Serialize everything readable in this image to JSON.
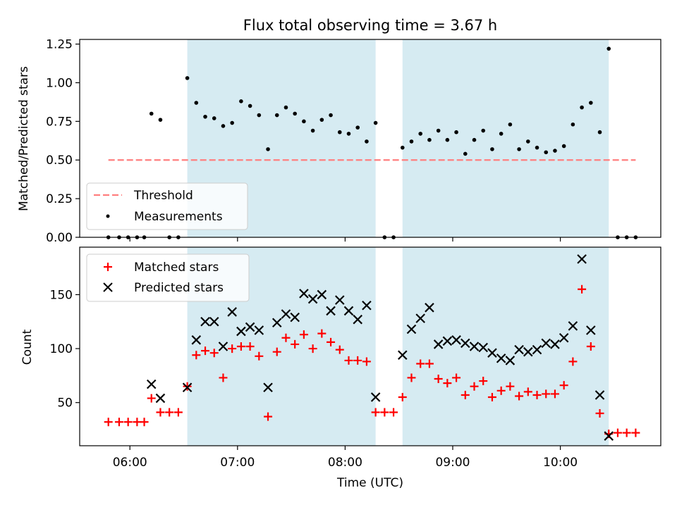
{
  "chart_data": [
    {
      "type": "scatter",
      "title": "Flux total observing time = 3.67 h",
      "xlabel": "",
      "ylabel": "Matched/Predicted stars",
      "ylim": [
        0,
        1.28
      ],
      "yticks": [
        "0.00",
        "0.25",
        "0.50",
        "0.75",
        "1.00",
        "1.25"
      ],
      "xlim": [
        "05:32",
        "10:56"
      ],
      "grid": false,
      "legend_position": "bottom-left",
      "shaded_intervals": [
        [
          "06:32",
          "08:17"
        ],
        [
          "08:32",
          "10:27"
        ]
      ],
      "shade_color": "#add8e6",
      "threshold": {
        "name": "Threshold",
        "value": 0.5,
        "x_range": [
          "05:48",
          "10:42"
        ],
        "color": "#ff7f7f"
      },
      "series": [
        {
          "name": "Measurements",
          "color": "#000000",
          "marker": "dot",
          "points": [
            [
              "05:48",
              0.0
            ],
            [
              "05:54",
              0.0
            ],
            [
              "05:59",
              0.0
            ],
            [
              "06:04",
              0.0
            ],
            [
              "06:08",
              0.0
            ],
            [
              "06:12",
              0.8
            ],
            [
              "06:17",
              0.76
            ],
            [
              "06:22",
              0.0
            ],
            [
              "06:27",
              0.0
            ],
            [
              "06:32",
              1.03
            ],
            [
              "06:37",
              0.87
            ],
            [
              "06:42",
              0.78
            ],
            [
              "06:47",
              0.77
            ],
            [
              "06:52",
              0.72
            ],
            [
              "06:57",
              0.74
            ],
            [
              "07:02",
              0.88
            ],
            [
              "07:07",
              0.85
            ],
            [
              "07:12",
              0.79
            ],
            [
              "07:17",
              0.57
            ],
            [
              "07:22",
              0.79
            ],
            [
              "07:27",
              0.84
            ],
            [
              "07:32",
              0.8
            ],
            [
              "07:37",
              0.75
            ],
            [
              "07:42",
              0.69
            ],
            [
              "07:47",
              0.76
            ],
            [
              "07:52",
              0.79
            ],
            [
              "07:57",
              0.68
            ],
            [
              "08:02",
              0.67
            ],
            [
              "08:07",
              0.71
            ],
            [
              "08:12",
              0.62
            ],
            [
              "08:17",
              0.74
            ],
            [
              "08:22",
              0.0
            ],
            [
              "08:27",
              0.0
            ],
            [
              "08:32",
              0.58
            ],
            [
              "08:37",
              0.62
            ],
            [
              "08:42",
              0.67
            ],
            [
              "08:47",
              0.63
            ],
            [
              "08:52",
              0.69
            ],
            [
              "08:57",
              0.63
            ],
            [
              "09:02",
              0.68
            ],
            [
              "09:07",
              0.54
            ],
            [
              "09:12",
              0.63
            ],
            [
              "09:17",
              0.69
            ],
            [
              "09:22",
              0.57
            ],
            [
              "09:27",
              0.67
            ],
            [
              "09:32",
              0.73
            ],
            [
              "09:37",
              0.57
            ],
            [
              "09:42",
              0.62
            ],
            [
              "09:47",
              0.58
            ],
            [
              "09:52",
              0.55
            ],
            [
              "09:57",
              0.56
            ],
            [
              "10:02",
              0.59
            ],
            [
              "10:07",
              0.73
            ],
            [
              "10:12",
              0.84
            ],
            [
              "10:17",
              0.87
            ],
            [
              "10:22",
              0.68
            ],
            [
              "10:27",
              1.22
            ],
            [
              "10:32",
              0.0
            ],
            [
              "10:37",
              0.0
            ],
            [
              "10:42",
              0.0
            ]
          ]
        }
      ]
    },
    {
      "type": "scatter",
      "title": "",
      "xlabel": "Time (UTC)",
      "ylabel": "Count",
      "ylim": [
        10,
        194
      ],
      "yticks": [
        "50",
        "100",
        "150"
      ],
      "xlim": [
        "05:32",
        "10:56"
      ],
      "xticks": [
        "06:00",
        "07:00",
        "08:00",
        "09:00",
        "10:00"
      ],
      "grid": false,
      "legend_position": "top-left",
      "shaded_intervals": [
        [
          "06:32",
          "08:17"
        ],
        [
          "08:32",
          "10:27"
        ]
      ],
      "shade_color": "#add8e6",
      "series": [
        {
          "name": "Matched stars",
          "color": "#ff0000",
          "marker": "plus",
          "points": [
            [
              "05:48",
              32
            ],
            [
              "05:54",
              32
            ],
            [
              "05:59",
              32
            ],
            [
              "06:04",
              32
            ],
            [
              "06:08",
              32
            ],
            [
              "06:12",
              54
            ],
            [
              "06:17",
              41
            ],
            [
              "06:22",
              41
            ],
            [
              "06:27",
              41
            ],
            [
              "06:32",
              65
            ],
            [
              "06:37",
              94
            ],
            [
              "06:42",
              98
            ],
            [
              "06:47",
              96
            ],
            [
              "06:52",
              73
            ],
            [
              "06:57",
              100
            ],
            [
              "07:02",
              102
            ],
            [
              "07:07",
              102
            ],
            [
              "07:12",
              93
            ],
            [
              "07:17",
              37
            ],
            [
              "07:22",
              97
            ],
            [
              "07:27",
              110
            ],
            [
              "07:32",
              104
            ],
            [
              "07:37",
              113
            ],
            [
              "07:42",
              100
            ],
            [
              "07:47",
              114
            ],
            [
              "07:52",
              106
            ],
            [
              "07:57",
              99
            ],
            [
              "08:02",
              89
            ],
            [
              "08:07",
              89
            ],
            [
              "08:12",
              88
            ],
            [
              "08:17",
              41
            ],
            [
              "08:22",
              41
            ],
            [
              "08:27",
              41
            ],
            [
              "08:32",
              55
            ],
            [
              "08:37",
              73
            ],
            [
              "08:42",
              86
            ],
            [
              "08:47",
              86
            ],
            [
              "08:52",
              72
            ],
            [
              "08:57",
              68
            ],
            [
              "09:02",
              73
            ],
            [
              "09:07",
              57
            ],
            [
              "09:12",
              65
            ],
            [
              "09:17",
              70
            ],
            [
              "09:22",
              55
            ],
            [
              "09:27",
              61
            ],
            [
              "09:32",
              65
            ],
            [
              "09:37",
              56
            ],
            [
              "09:42",
              60
            ],
            [
              "09:47",
              57
            ],
            [
              "09:52",
              58
            ],
            [
              "09:57",
              58
            ],
            [
              "10:02",
              66
            ],
            [
              "10:07",
              88
            ],
            [
              "10:12",
              155
            ],
            [
              "10:17",
              102
            ],
            [
              "10:22",
              40
            ],
            [
              "10:27",
              21
            ],
            [
              "10:32",
              22
            ],
            [
              "10:37",
              22
            ],
            [
              "10:42",
              22
            ]
          ]
        },
        {
          "name": "Predicted stars",
          "color": "#000000",
          "marker": "x",
          "points": [
            [
              "06:12",
              67
            ],
            [
              "06:17",
              54
            ],
            [
              "06:32",
              64
            ],
            [
              "06:37",
              108
            ],
            [
              "06:42",
              125
            ],
            [
              "06:47",
              125
            ],
            [
              "06:52",
              102
            ],
            [
              "06:57",
              134
            ],
            [
              "07:02",
              116
            ],
            [
              "07:07",
              120
            ],
            [
              "07:12",
              117
            ],
            [
              "07:17",
              64
            ],
            [
              "07:22",
              124
            ],
            [
              "07:27",
              132
            ],
            [
              "07:32",
              129
            ],
            [
              "07:37",
              151
            ],
            [
              "07:42",
              146
            ],
            [
              "07:47",
              150
            ],
            [
              "07:52",
              135
            ],
            [
              "07:57",
              145
            ],
            [
              "08:02",
              135
            ],
            [
              "08:07",
              127
            ],
            [
              "08:12",
              140
            ],
            [
              "08:17",
              55
            ],
            [
              "08:32",
              94
            ],
            [
              "08:37",
              118
            ],
            [
              "08:42",
              128
            ],
            [
              "08:47",
              138
            ],
            [
              "08:52",
              104
            ],
            [
              "08:57",
              107
            ],
            [
              "09:02",
              108
            ],
            [
              "09:07",
              105
            ],
            [
              "09:12",
              102
            ],
            [
              "09:17",
              101
            ],
            [
              "09:22",
              96
            ],
            [
              "09:27",
              91
            ],
            [
              "09:32",
              89
            ],
            [
              "09:37",
              99
            ],
            [
              "09:42",
              97
            ],
            [
              "09:47",
              99
            ],
            [
              "09:52",
              105
            ],
            [
              "09:57",
              104
            ],
            [
              "10:02",
              110
            ],
            [
              "10:07",
              121
            ],
            [
              "10:12",
              183
            ],
            [
              "10:17",
              117
            ],
            [
              "10:22",
              57
            ],
            [
              "10:27",
              19
            ]
          ]
        }
      ]
    }
  ]
}
